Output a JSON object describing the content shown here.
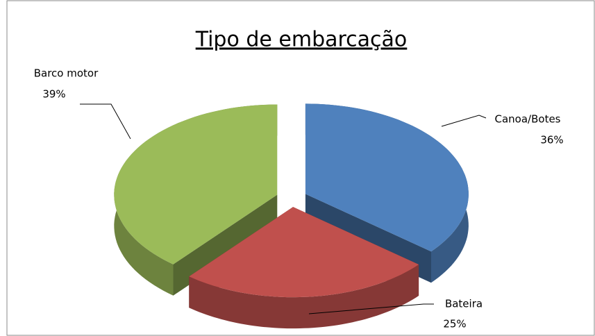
{
  "chart_data": {
    "type": "pie",
    "title": "Tipo de embarcação",
    "categories": [
      "Canoa/Botes",
      "Bateira",
      "Barco motor"
    ],
    "values": [
      36,
      25,
      39
    ],
    "value_labels": [
      "36%",
      "25%",
      "39%"
    ],
    "colors": [
      "#4f81bd",
      "#c0504d",
      "#9bbb59"
    ]
  }
}
